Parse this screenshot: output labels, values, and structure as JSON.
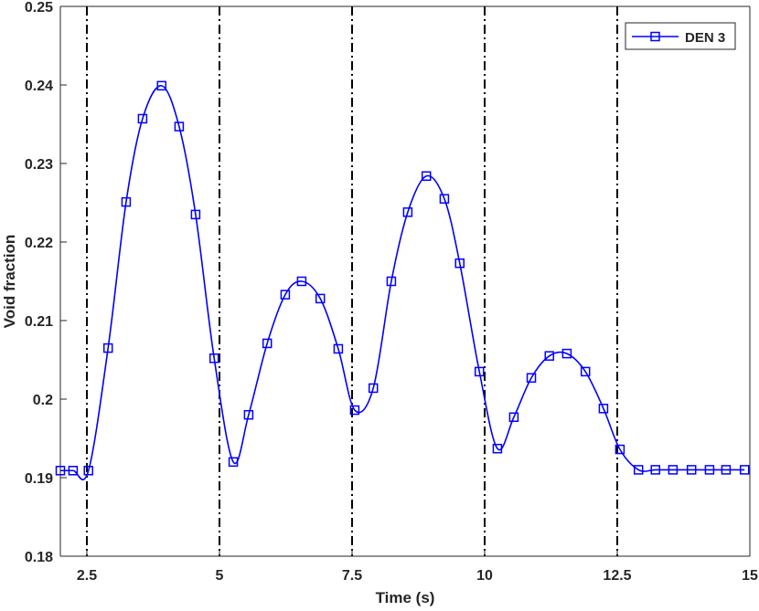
{
  "chart_data": {
    "type": "line",
    "title": "",
    "xlabel": "Time (s)",
    "ylabel": "Void fraction",
    "xlim": [
      2,
      15
    ],
    "ylim": [
      0.18,
      0.25
    ],
    "xticks": [
      2.5,
      5,
      7.5,
      10,
      12.5,
      15
    ],
    "xtick_labels": [
      "2.5",
      "5",
      "7.5",
      "10",
      "12.5",
      "15"
    ],
    "yticks": [
      0.18,
      0.19,
      0.2,
      0.21,
      0.22,
      0.23,
      0.24,
      0.25
    ],
    "ytick_labels": [
      "0.18",
      "0.19",
      "0.2",
      "0.21",
      "0.22",
      "0.23",
      "0.24",
      "0.25"
    ],
    "grid": false,
    "legend_position": "top-right",
    "vertical_lines": [
      2.5,
      5,
      7.5,
      10,
      12.5
    ],
    "series": [
      {
        "name": "DEN 3",
        "color": "#0000ff",
        "marker": "square",
        "x": [
          2.0,
          2.24,
          2.53,
          2.9,
          3.24,
          3.55,
          3.91,
          4.24,
          4.55,
          4.9,
          5.26,
          5.55,
          5.9,
          6.24,
          6.55,
          6.9,
          7.24,
          7.55,
          7.9,
          8.24,
          8.55,
          8.9,
          9.24,
          9.53,
          9.9,
          10.24,
          10.55,
          10.88,
          11.22,
          11.55,
          11.9,
          12.24,
          12.55,
          12.9,
          13.22,
          13.55,
          13.9,
          14.24,
          14.55,
          14.9
        ],
        "y": [
          0.1909,
          0.1909,
          0.1909,
          0.2065,
          0.2251,
          0.2357,
          0.2399,
          0.2347,
          0.2235,
          0.2052,
          0.192,
          0.198,
          0.2071,
          0.2133,
          0.215,
          0.2128,
          0.2064,
          0.1986,
          0.2014,
          0.215,
          0.2238,
          0.2284,
          0.2255,
          0.2173,
          0.2035,
          0.1937,
          0.1977,
          0.2027,
          0.2055,
          0.2058,
          0.2035,
          0.1988,
          0.1936,
          0.191,
          0.191,
          0.191,
          0.191,
          0.191,
          0.191,
          0.191
        ]
      }
    ]
  }
}
